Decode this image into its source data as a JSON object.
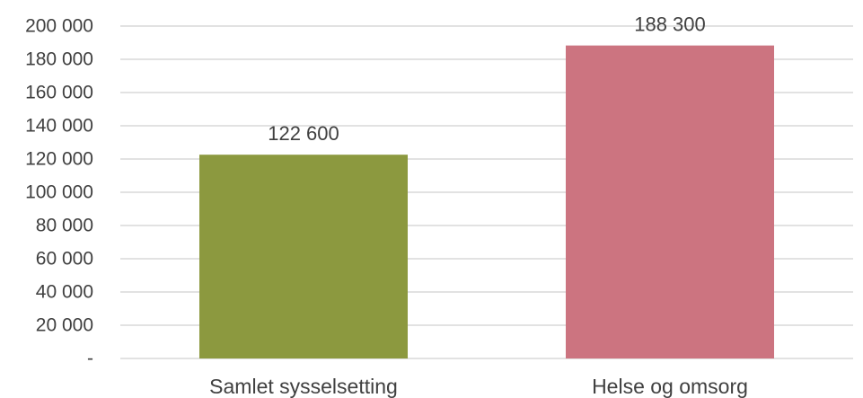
{
  "chart_data": {
    "type": "bar",
    "categories": [
      "Samlet sysselsetting",
      "Helse og omsorg"
    ],
    "values": [
      122600,
      188300
    ],
    "data_labels": [
      "122 600",
      "188 300"
    ],
    "colors": [
      "#8c993f",
      "#cc7480"
    ],
    "ylim": [
      0,
      200000
    ],
    "y_ticks": [
      {
        "value": 0,
        "label": "-"
      },
      {
        "value": 20000,
        "label": "20 000"
      },
      {
        "value": 40000,
        "label": "40 000"
      },
      {
        "value": 60000,
        "label": "60 000"
      },
      {
        "value": 80000,
        "label": "80 000"
      },
      {
        "value": 100000,
        "label": "100 000"
      },
      {
        "value": 120000,
        "label": "120 000"
      },
      {
        "value": 140000,
        "label": "140 000"
      },
      {
        "value": 160000,
        "label": "160 000"
      },
      {
        "value": 180000,
        "label": "180 000"
      },
      {
        "value": 200000,
        "label": "200 000"
      }
    ],
    "grid": true,
    "legend": "none",
    "title": "",
    "xlabel": "",
    "ylabel": ""
  }
}
